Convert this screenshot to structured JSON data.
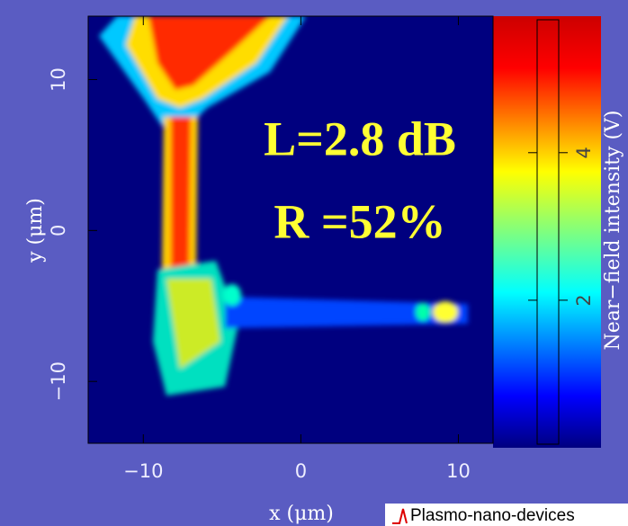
{
  "chart_data": {
    "type": "heatmap",
    "xlabel": "x (μm)",
    "ylabel": "y (μm)",
    "xlim": [
      -13.5,
      12.2
    ],
    "ylim": [
      -14.1,
      14.2
    ],
    "xticks": [
      {
        "value": -10,
        "label": "−10"
      },
      0,
      10
    ],
    "yticks": [
      {
        "value": -10,
        "label": "−10"
      },
      0,
      10
    ],
    "colorbar": {
      "label": "Near−field intensity (V)",
      "lim": [
        0,
        5.85
      ],
      "ticks": [
        2,
        4
      ]
    },
    "annotations": [
      "L=2.8 dB",
      "R =52%"
    ],
    "logo": "Plasmo-nano-devices"
  }
}
